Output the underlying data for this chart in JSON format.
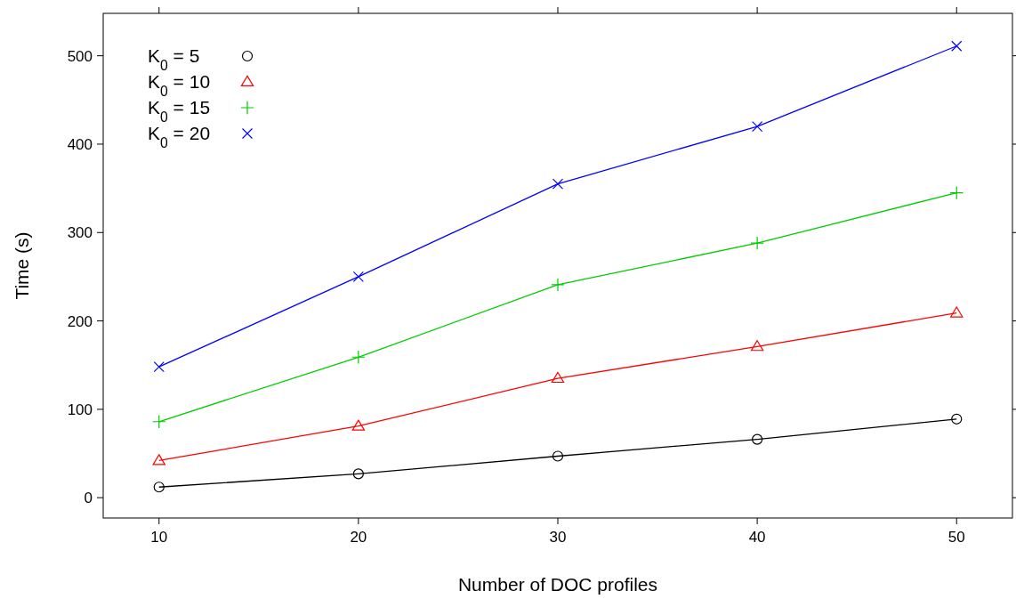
{
  "chart_data": {
    "type": "line",
    "xlabel": "Number of DOC profiles",
    "ylabel": "Time (s)",
    "x": [
      10,
      20,
      30,
      40,
      50
    ],
    "series": [
      {
        "name": "K$_{0}$ = 5",
        "color": "#000000",
        "marker": "circle",
        "values": [
          12,
          27,
          47,
          66,
          89
        ]
      },
      {
        "name": "K$_{0}$ = 10",
        "color": "#ff0000",
        "marker": "triangle",
        "values": [
          42,
          81,
          135,
          171,
          209
        ]
      },
      {
        "name": "K$_{0}$ = 15",
        "color": "#00cc00",
        "marker": "plus",
        "values": [
          86,
          159,
          241,
          288,
          345
        ]
      },
      {
        "name": "K$_{0}$ = 20",
        "color": "#0000ff",
        "marker": "x",
        "values": [
          148,
          250,
          355,
          420,
          511
        ]
      }
    ],
    "xlim": [
      7.2,
      52.8
    ],
    "xticks": [
      10,
      20,
      30,
      40,
      50
    ],
    "ylim": [
      -23,
      548
    ],
    "yticks": [
      0,
      100,
      200,
      300,
      400,
      500
    ],
    "grid": false,
    "legend": "top left",
    "line_style": "solid"
  }
}
